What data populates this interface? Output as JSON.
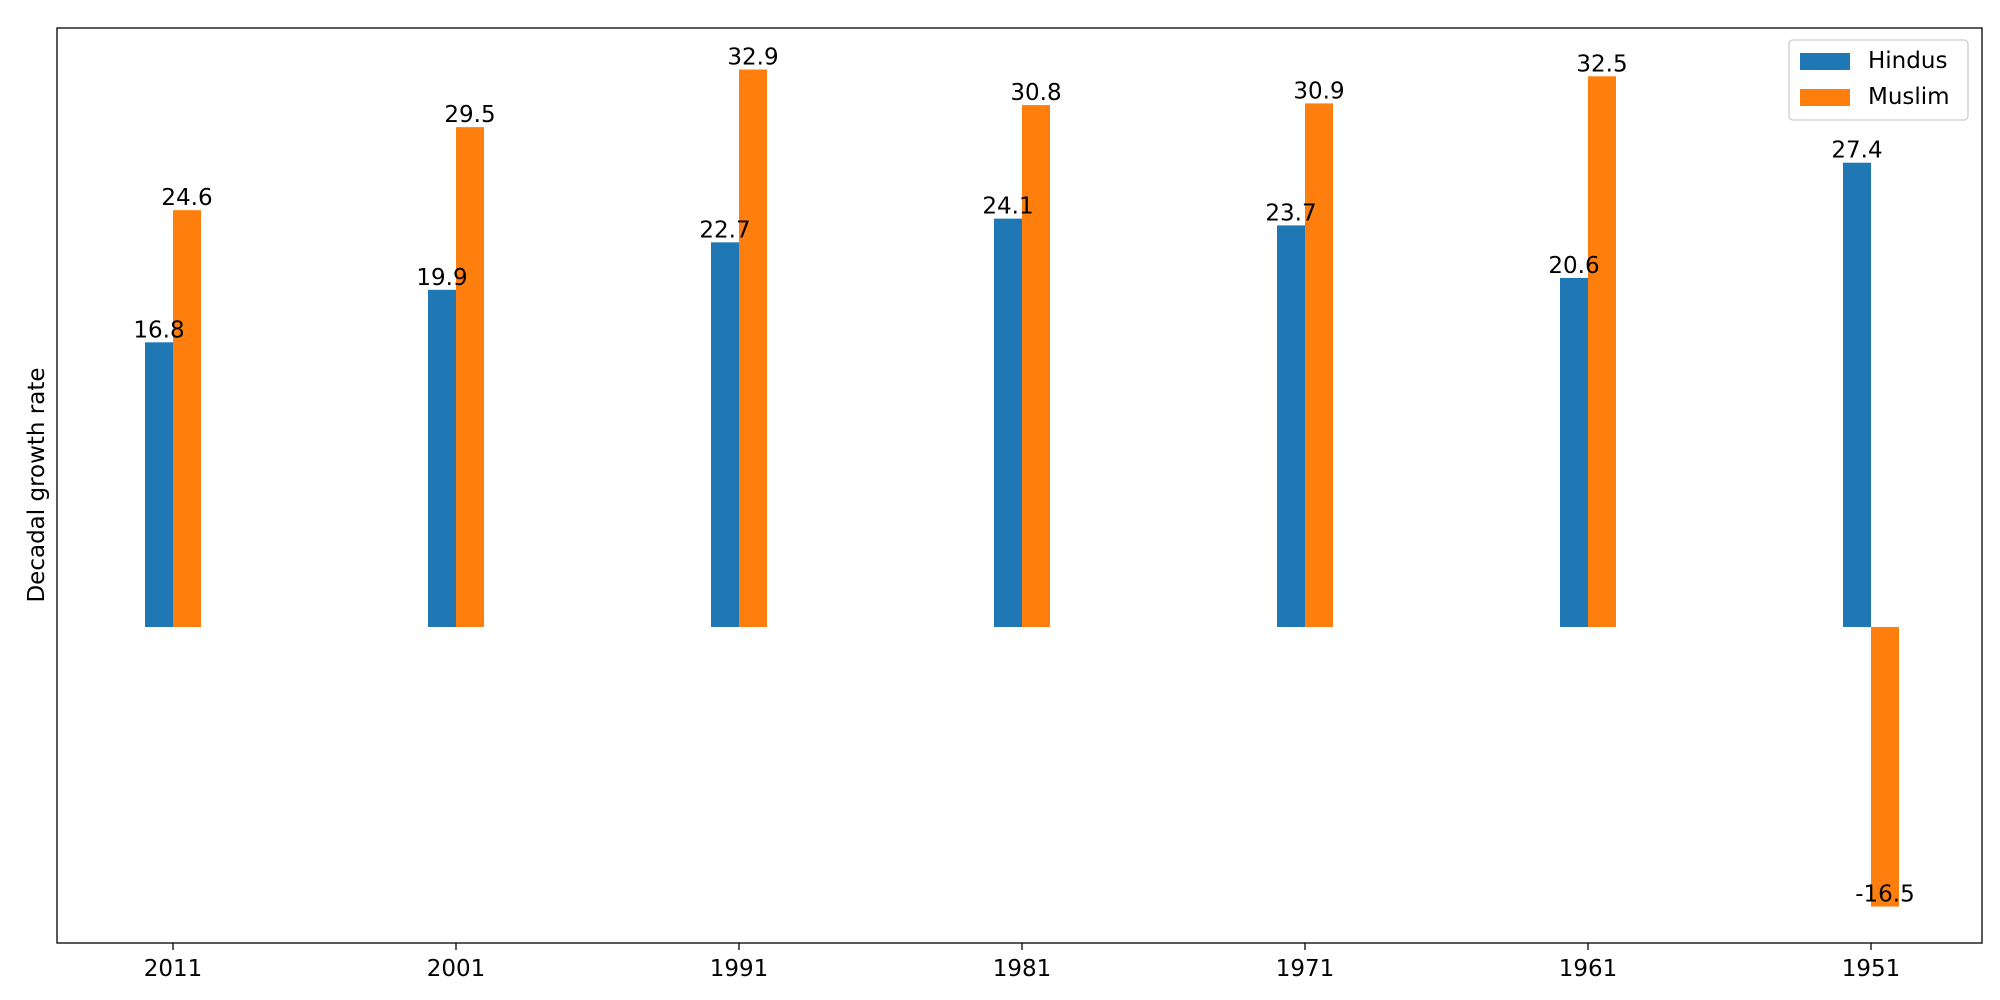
{
  "chart_data": {
    "type": "bar",
    "title": "",
    "xlabel": "",
    "ylabel": "Decadal growth rate",
    "categories": [
      "2011",
      "2001",
      "1991",
      "1981",
      "1971",
      "1961",
      "1951"
    ],
    "series": [
      {
        "name": "Hindus",
        "color": "#1f77b4",
        "values": [
          16.8,
          19.9,
          22.7,
          24.1,
          23.7,
          20.6,
          27.4
        ]
      },
      {
        "name": "Muslim",
        "color": "#ff7f0e",
        "values": [
          24.6,
          29.5,
          32.9,
          30.8,
          30.9,
          32.5,
          -16.5
        ]
      }
    ],
    "ylim": [
      -18.65,
      35.35
    ],
    "y_ticks_shown": false,
    "grid": false,
    "legend": "top-right",
    "data_labels": true
  }
}
